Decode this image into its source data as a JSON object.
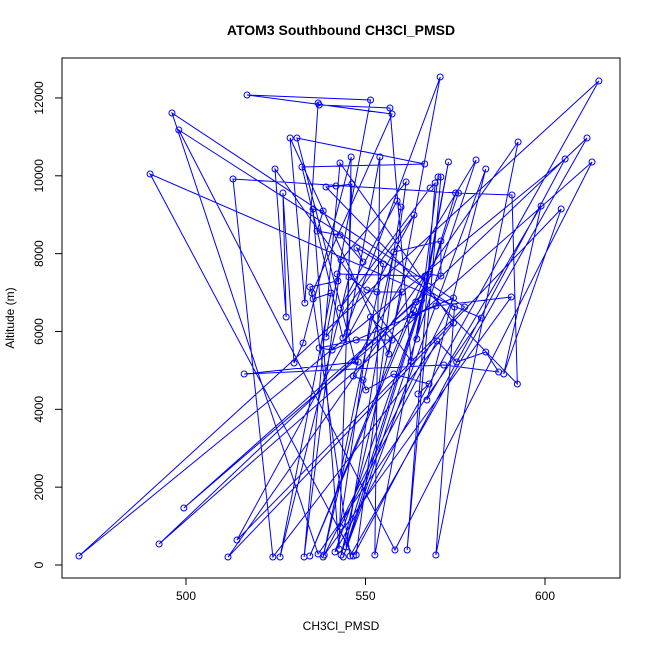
{
  "chart_data": {
    "type": "line",
    "title": "ATOM3 Southbound CH3Cl_PMSD",
    "x_label": "CH3Cl_PMSD",
    "y_label": "Altitude (m)",
    "x": [
      547.4,
      561.3,
      543.2,
      532.9,
      542.9,
      574.5,
      524.2,
      513.1,
      575.9,
      541.5,
      615,
      470.2,
      605.6,
      546.6,
      490,
      582.3,
      536.8,
      496.1,
      577.6,
      514.2,
      563.5,
      539,
      551.4,
      517,
      557.4,
      535.1,
      545.7,
      611.7,
      492.5,
      613.1,
      558.2,
      498,
      574.8,
      569.6,
      592.5,
      511.7,
      604.5,
      588.5,
      598.9,
      567.1,
      583.5,
      543.8,
      580.8,
      547.1,
      530.9,
      566.5,
      532.3,
      543.7,
      570.8,
      556.5,
      529,
      533.1,
      536.8,
      537.1,
      556.8,
      562.7,
      524.8,
      527.9,
      527,
      530.1,
      532.6,
      546,
      545,
      554,
      552.6,
      573.1,
      564.3,
      570.2,
      571,
      561.6,
      569.4,
      568,
      543,
      558.8,
      559.9,
      544.6,
      575.1,
      590.8,
      592.3,
      539,
      541.8,
      546.2,
      542.6,
      535.4,
      538.2,
      536.5,
      542.9,
      549.3,
      547.6,
      555,
      538.2,
      557.9,
      571,
      571,
      567.7,
      534.5,
      566.6,
      542.1,
      542.3,
      534.5,
      535.4,
      540.4,
      526.2,
      545.4,
      550.4,
      553.2,
      560.2,
      543.2,
      566.3,
      565.6,
      564,
      499.4,
      563.4,
      563.1,
      574.5,
      538.5,
      590.6,
      569.6,
      540.7,
      537.1,
      547.4,
      557.4,
      551.4,
      542.9,
      569.9,
      575.4,
      583.5,
      587.1,
      571.8,
      516.2,
      548,
      546.6,
      549.3,
      550.1,
      557.9,
      567.7,
      564.6
    ],
    "values": [
      257,
      9840,
      7837,
      206,
      10329,
      6218,
      206,
      9918,
      9558,
      334,
      12435,
      231,
      10432,
      231,
      10046,
      6346,
      283,
      11614,
      6629,
      642,
      8994,
      5858,
      11947,
      12076,
      11588,
      6989,
      231,
      10971,
      540,
      10355,
      385,
      11177,
      6629,
      257,
      10869,
      206,
      9147,
      4907,
      9224,
      4239,
      10175,
      206,
      10406,
      5242,
      10971,
      10303,
      10226,
      5833,
      12538,
      5421,
      10971,
      6732,
      11870,
      11819,
      11742,
      5242,
      10175,
      6372,
      9558,
      5190,
      5704,
      10483,
      5987,
      10483,
      257,
      10355,
      5807,
      9969,
      9969,
      385,
      9815,
      9686,
      6603,
      9353,
      9198,
      462,
      9558,
      9507,
      4650,
      9712,
      9738,
      9789,
      411,
      9147,
      9096,
      8582,
      8479,
      7785,
      8145,
      7734,
      206,
      8042,
      8325,
      7425,
      7477,
      231,
      7425,
      7477,
      7297,
      7143,
      6835,
      6989,
      206,
      7400,
      7066,
      7015,
      7015,
      257,
      7015,
      6809,
      6757,
      1465,
      6552,
      6423,
      6860,
      257,
      6886,
      6655,
      5524,
      5576,
      5781,
      5781,
      6372,
      976,
      5755,
      5216,
      5473,
      4959,
      5139,
      4907,
      5216,
      4856,
      4753,
      4496,
      4907,
      4650,
      4394
    ],
    "color": "#0000ff",
    "xlim": [
      465.46,
      620.89
    ],
    "ylim": [
      -334,
      13027
    ],
    "xticks": [
      500,
      550,
      600
    ],
    "yticks": [
      0,
      2000,
      4000,
      6000,
      8000,
      10000,
      12000
    ]
  }
}
